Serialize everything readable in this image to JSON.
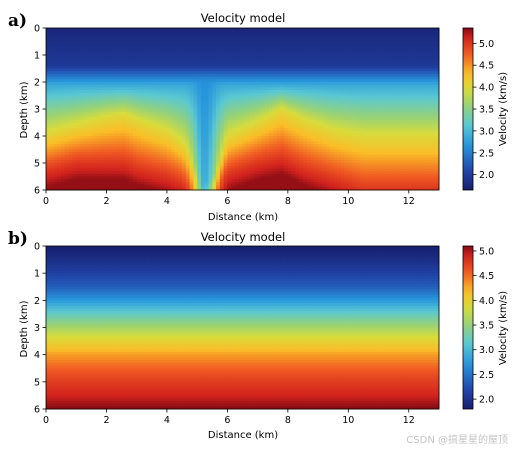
{
  "watermark": "CSDN @搞星星的屋顶",
  "chart_data": [
    {
      "type": "heatmap",
      "panel_label": "a)",
      "title": "Velocity model",
      "xlabel": "Distance (km)",
      "ylabel": "Depth (km)",
      "xlim": [
        0,
        13
      ],
      "ylim": [
        6,
        0
      ],
      "xticks": [
        0,
        2,
        4,
        6,
        8,
        10,
        12
      ],
      "yticks": [
        0,
        1,
        2,
        3,
        4,
        5,
        6
      ],
      "colorbar": {
        "label": "Velocity (km/s)",
        "vmin": 1.65,
        "vmax": 5.35,
        "ticks": [
          2.0,
          2.5,
          3.0,
          3.5,
          4.0,
          4.5,
          5.0
        ],
        "tick_labels": [
          "2.0",
          "2.5",
          "3.0",
          "3.5",
          "4.0",
          "4.5",
          "5.0"
        ]
      },
      "colormap": "jet-like",
      "grid": false,
      "depth": [
        0,
        0.5,
        1,
        1.5,
        2,
        2.5,
        3,
        3.5,
        4,
        4.5,
        5,
        5.5,
        6
      ],
      "distance": [
        0,
        0.5,
        1,
        1.5,
        2,
        2.5,
        3,
        3.5,
        4,
        4.5,
        5,
        5.5,
        6,
        6.5,
        7,
        7.5,
        8,
        8.5,
        9,
        9.5,
        10,
        10.5,
        11,
        11.5,
        12,
        12.5,
        13
      ],
      "layer_depth_km": {
        "distance": [
          0,
          1,
          2,
          2.6,
          3,
          4,
          4.6,
          5.0,
          5.2,
          5.6,
          6,
          7,
          7.8,
          8.5,
          9.5,
          10.5,
          11.5,
          13
        ],
        "top_of_4km_s": [
          3.9,
          3.6,
          3.3,
          3.2,
          3.4,
          3.8,
          4.3,
          5.0,
          5.8,
          5.3,
          4.0,
          3.5,
          3.0,
          3.4,
          3.8,
          4.0,
          4.0,
          4.0
        ],
        "top_of_5km_s": [
          5.3,
          5.0,
          5.0,
          5.0,
          5.2,
          5.5,
          5.8,
          6.0,
          6.0,
          6.0,
          5.4,
          5.0,
          4.8,
          5.2,
          5.6,
          6.0,
          6.0,
          6.0
        ]
      },
      "v_min_observed": 1.7,
      "v_max_observed": 5.3
    },
    {
      "type": "heatmap",
      "panel_label": "b)",
      "title": "Velocity model",
      "xlabel": "Distance (km)",
      "ylabel": "Depth (km)",
      "xlim": [
        0,
        13
      ],
      "ylim": [
        6,
        0
      ],
      "xticks": [
        0,
        2,
        4,
        6,
        8,
        10,
        12
      ],
      "yticks": [
        0,
        1,
        2,
        3,
        4,
        5,
        6
      ],
      "colorbar": {
        "label": "Velocity (km/s)",
        "vmin": 1.8,
        "vmax": 5.1,
        "ticks": [
          2.0,
          2.5,
          3.0,
          3.5,
          4.0,
          4.5,
          5.0
        ],
        "tick_labels": [
          "2.0",
          "2.5",
          "3.0",
          "3.5",
          "4.0",
          "4.5",
          "5.0"
        ]
      },
      "colormap": "jet-like",
      "grid": false,
      "depth_profile_km": [
        0,
        0.5,
        1,
        1.5,
        2,
        2.5,
        3,
        3.5,
        4,
        4.5,
        5,
        5.5,
        6
      ],
      "velocity_profile_km_s": [
        1.8,
        1.95,
        2.15,
        2.35,
        2.75,
        3.2,
        3.6,
        3.95,
        4.3,
        4.55,
        4.75,
        4.9,
        5.1
      ],
      "laterally_homogeneous": true
    }
  ]
}
